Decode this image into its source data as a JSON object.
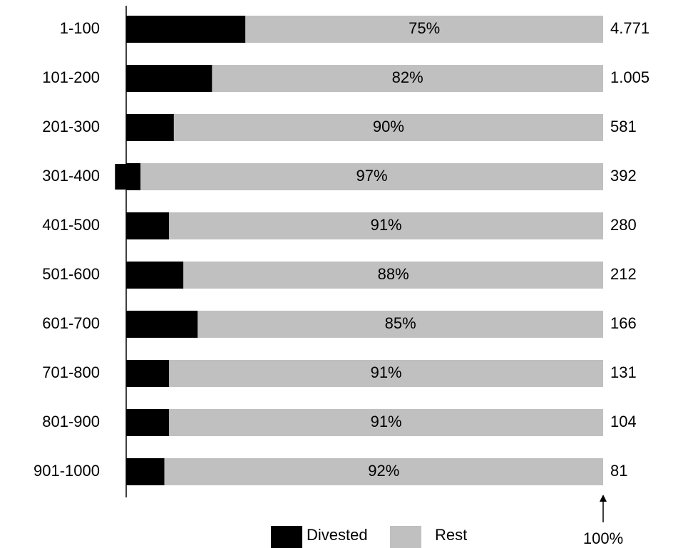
{
  "chart_data": {
    "type": "stacked-bar-100",
    "orientation": "horizontal",
    "categories": [
      "1-100",
      "101-200",
      "201-300",
      "301-400",
      "401-500",
      "501-600",
      "601-700",
      "701-800",
      "801-900",
      "901-1000"
    ],
    "series": [
      {
        "name": "Divested",
        "color": "#000000",
        "label_color": "#ffffff",
        "values": [
          25,
          18,
          10,
          3,
          9,
          12,
          15,
          9,
          9,
          8
        ],
        "value_labels": [
          "25%",
          "18%",
          "10%",
          "3%",
          "9%",
          "12%",
          "15%",
          "9%",
          "9%",
          "8%"
        ]
      },
      {
        "name": "Rest",
        "color": "#c0c0c0",
        "label_color": "#000000",
        "values": [
          75,
          82,
          90,
          97,
          91,
          88,
          85,
          91,
          91,
          92
        ],
        "value_labels": [
          "75%",
          "82%",
          "90%",
          "97%",
          "91%",
          "88%",
          "85%",
          "91%",
          "91%",
          "92%"
        ]
      }
    ],
    "totals": {
      "values": [
        4771,
        1005,
        581,
        392,
        280,
        212,
        166,
        131,
        104,
        81
      ],
      "value_labels": [
        "4.771",
        "1.005",
        "581",
        "392",
        "280",
        "212",
        "166",
        "131",
        "104",
        "81"
      ]
    },
    "xlim": [
      0,
      100
    ],
    "annotation": {
      "value": 100,
      "label": "100%"
    },
    "legend": "bottom"
  }
}
